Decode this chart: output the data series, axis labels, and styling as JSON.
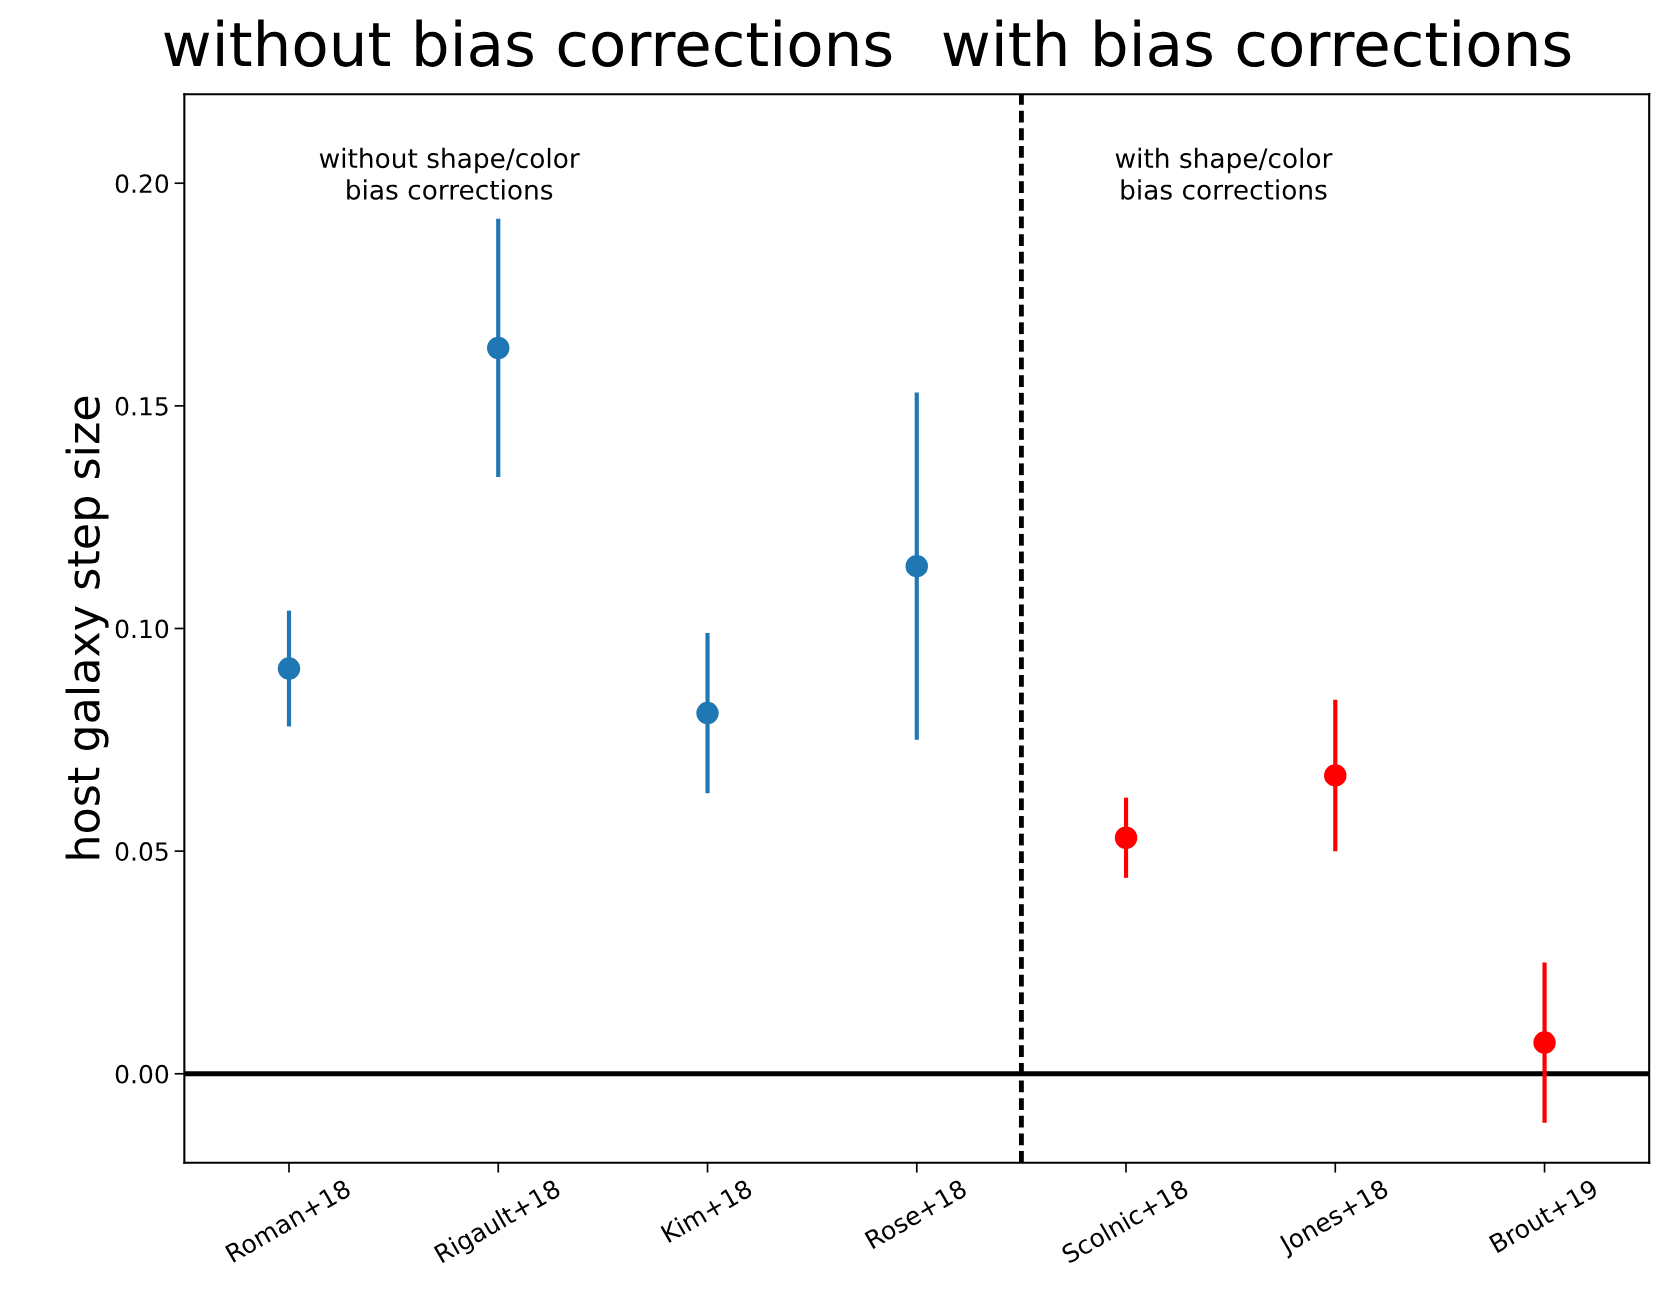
{
  "chart_data": {
    "type": "scatter",
    "ylabel": "host galaxy step size",
    "categories": [
      "Roman+18",
      "Rigault+18",
      "Kim+18",
      "Rose+18",
      "Scolnic+18",
      "Jones+18",
      "Brout+19"
    ],
    "series": [
      {
        "color": "#1f77b4",
        "values": [
          0.091,
          0.163,
          0.081,
          0.114,
          null,
          null,
          null
        ],
        "errors": [
          0.013,
          0.029,
          0.018,
          0.039,
          null,
          null,
          null
        ]
      },
      {
        "color": "#ff0000",
        "values": [
          null,
          null,
          null,
          null,
          0.053,
          0.067,
          0.007
        ],
        "errors": [
          null,
          null,
          null,
          null,
          0.009,
          0.017,
          0.018
        ]
      }
    ],
    "ylim": [
      -0.02,
      0.22
    ],
    "yticks": [
      {
        "value": 0,
        "label": "0.00"
      },
      {
        "value": 0.05,
        "label": "0.05"
      },
      {
        "value": 0.1,
        "label": "0.10"
      },
      {
        "value": 0.15,
        "label": "0.15"
      },
      {
        "value": 0.2,
        "label": "0.20"
      }
    ],
    "ref_lines": [
      {
        "axis": "y",
        "value": 0,
        "color": "#000000",
        "line_style": "solid"
      }
    ],
    "annotations": [
      "without bias corrections",
      "with bias corrections",
      "without shape/color\nbias corrections",
      "with shape/color\nbias corrections"
    ],
    "marker": "circle",
    "grid": false,
    "legend": false
  }
}
